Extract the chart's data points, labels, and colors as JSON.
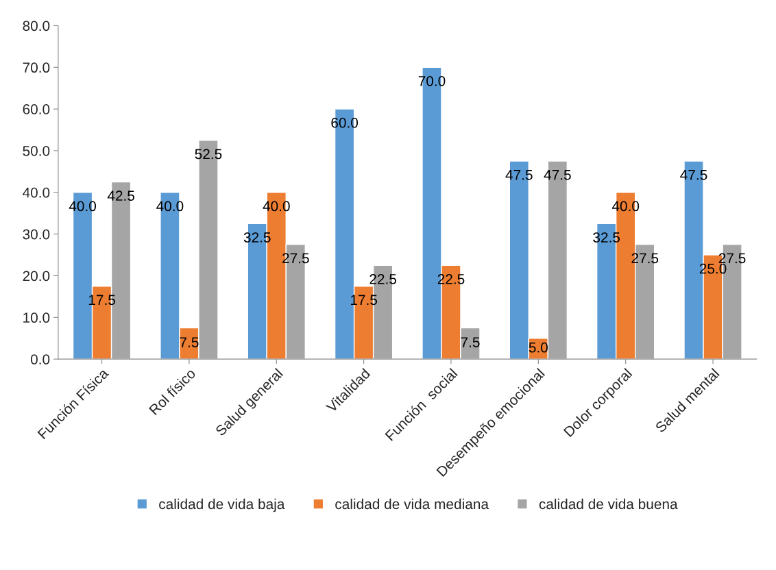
{
  "chart_data": {
    "type": "bar",
    "categories": [
      "Función Física",
      "Rol físico",
      "Salud general",
      "Vitalidad",
      "Función  social",
      "Desempeño emocional",
      "Dolor corporal",
      "Salud mental"
    ],
    "series": [
      {
        "name": "calidad de vida baja",
        "color": "#5b9bd5",
        "values": [
          40.0,
          40.0,
          32.5,
          60.0,
          70.0,
          47.5,
          32.5,
          47.5
        ],
        "value_labels": [
          "40.0",
          "40.0",
          "32.5",
          "60.0",
          "70.0",
          "47.5",
          "32.5",
          "47.5"
        ]
      },
      {
        "name": "calidad de vida mediana",
        "color": "#ed7d31",
        "values": [
          17.5,
          7.5,
          40.0,
          17.5,
          22.5,
          5.0,
          40.0,
          25.0
        ],
        "value_labels": [
          "17.5",
          "7.5",
          "40.0",
          "17.5",
          "22.5",
          "5.0",
          "40.0",
          "25.0"
        ]
      },
      {
        "name": "calidad de vida buena",
        "color": "#a5a5a5",
        "values": [
          42.5,
          52.5,
          27.5,
          22.5,
          7.5,
          47.5,
          27.5,
          27.5
        ],
        "value_labels": [
          "42.5",
          "52.5",
          "27.5",
          "22.5",
          "7.5",
          "47.5",
          "27.5",
          "27.5"
        ]
      }
    ],
    "ylim": [
      0,
      80
    ],
    "yticks": [
      {
        "value": 0,
        "label": "0.0"
      },
      {
        "value": 10,
        "label": "10.0"
      },
      {
        "value": 20,
        "label": "20.0"
      },
      {
        "value": 30,
        "label": "30.0"
      },
      {
        "value": 40,
        "label": "40.0"
      },
      {
        "value": 50,
        "label": "50.0"
      },
      {
        "value": 60,
        "label": "60.0"
      },
      {
        "value": 70,
        "label": "70.0"
      },
      {
        "value": 80,
        "label": "80.0"
      }
    ],
    "grid": false,
    "legend": "bottom"
  }
}
